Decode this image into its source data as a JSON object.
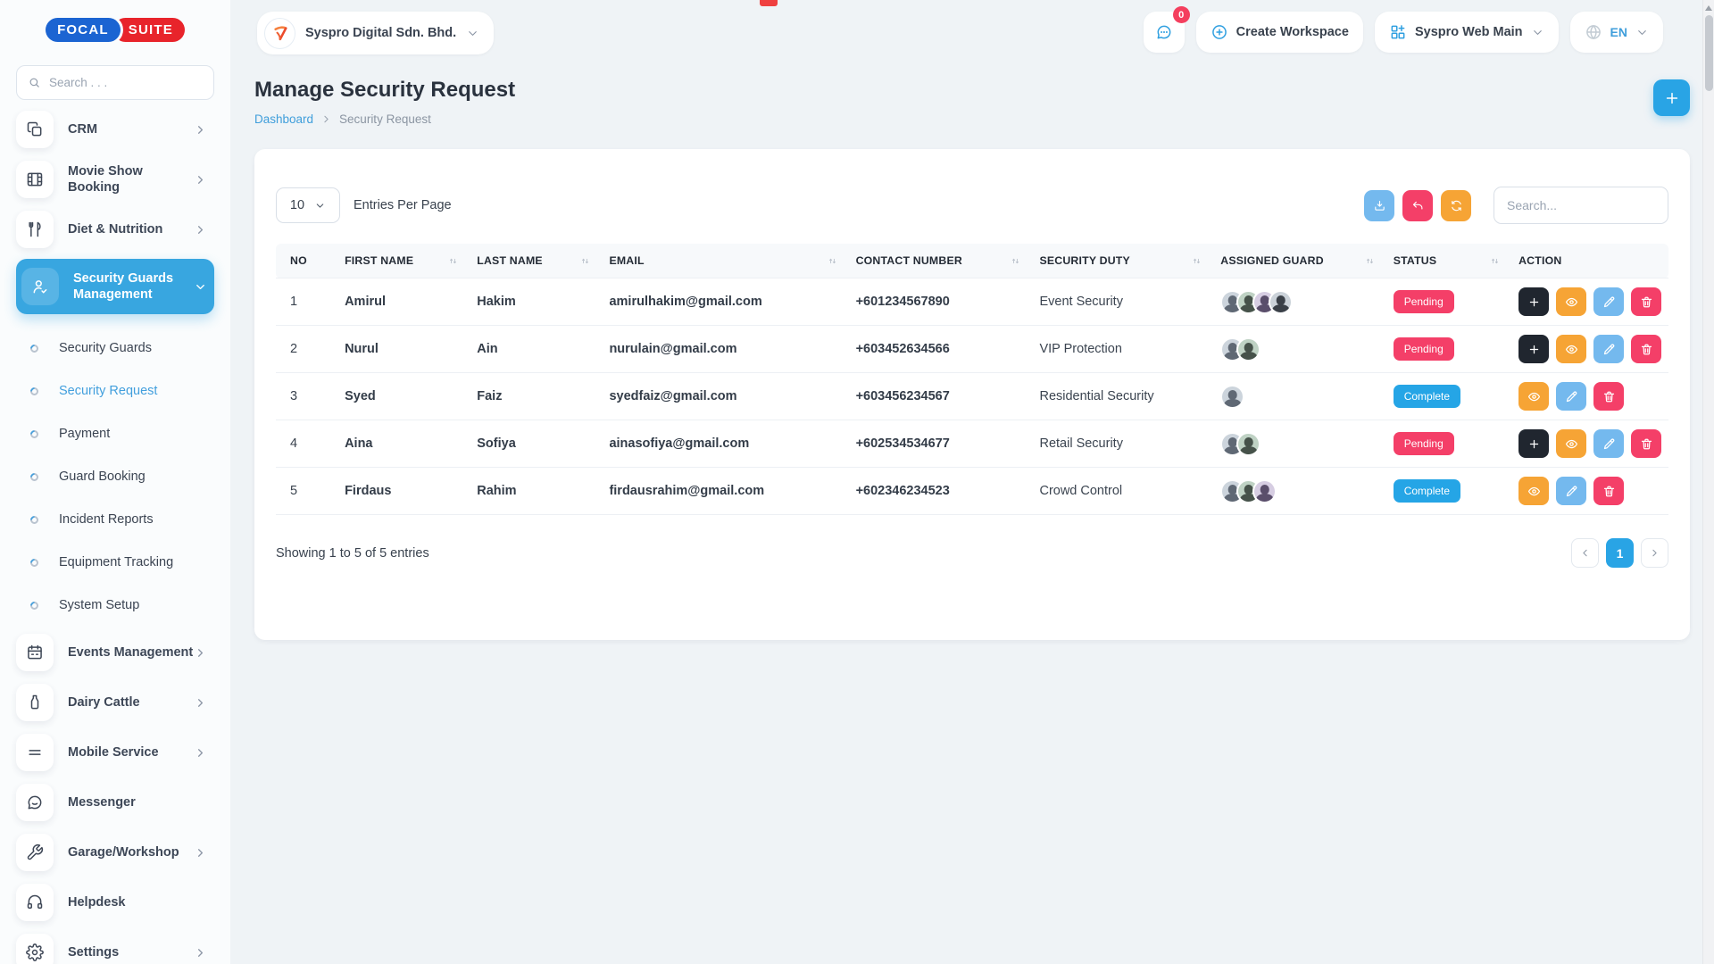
{
  "app": {
    "logo_primary": "FOCAL",
    "logo_secondary": "SUITE"
  },
  "sidebar": {
    "search_placeholder": "Search . . .",
    "items": [
      {
        "label": "CRM",
        "icon": "crm",
        "chevron": "right"
      },
      {
        "label": "Movie Show Booking",
        "icon": "film",
        "chevron": "right"
      },
      {
        "label": "Diet & Nutrition",
        "icon": "diet",
        "chevron": "right"
      },
      {
        "label": "Security Guards Management",
        "icon": "guard",
        "chevron": "down",
        "active": true,
        "children": [
          {
            "label": "Security Guards"
          },
          {
            "label": "Security Request",
            "active": true
          },
          {
            "label": "Payment"
          },
          {
            "label": "Guard Booking"
          },
          {
            "label": "Incident Reports"
          },
          {
            "label": "Equipment Tracking"
          },
          {
            "label": "System Setup"
          }
        ]
      },
      {
        "label": "Events Management",
        "icon": "calendar",
        "chevron": "right"
      },
      {
        "label": "Dairy Cattle",
        "icon": "milk",
        "chevron": "right"
      },
      {
        "label": "Mobile Service",
        "icon": "mobile",
        "chevron": "right"
      },
      {
        "label": "Messenger",
        "icon": "chat"
      },
      {
        "label": "Garage/Workshop",
        "icon": "wrench",
        "chevron": "right"
      },
      {
        "label": "Helpdesk",
        "icon": "headset"
      },
      {
        "label": "Settings",
        "icon": "gear",
        "chevron": "right"
      }
    ]
  },
  "topbar": {
    "company": "Syspro Digital Sdn. Bhd.",
    "chat_badge": "0",
    "create_workspace": "Create Workspace",
    "workspace": "Syspro Web Main",
    "language": "EN"
  },
  "page": {
    "title": "Manage Security Request",
    "breadcrumb": {
      "home": "Dashboard",
      "current": "Security Request"
    }
  },
  "toolbar": {
    "entries_value": "10",
    "entries_label": "Entries Per Page",
    "search_placeholder": "Search..."
  },
  "table": {
    "columns": [
      "NO",
      "FIRST NAME",
      "LAST NAME",
      "EMAIL",
      "CONTACT NUMBER",
      "SECURITY DUTY",
      "ASSIGNED GUARD",
      "STATUS",
      "ACTION"
    ],
    "sortable": [
      false,
      true,
      true,
      true,
      true,
      true,
      true,
      true,
      false
    ],
    "status_colors": {
      "Pending": "#f43f68",
      "Complete": "#25a5e6"
    },
    "rows": [
      {
        "no": "1",
        "first_name": "Amirul",
        "last_name": "Hakim",
        "email": "amirulhakim@gmail.com",
        "contact": "+601234567890",
        "duty": "Event Security",
        "guards": 4,
        "status": "Pending",
        "actions": [
          "add",
          "view",
          "edit",
          "delete"
        ]
      },
      {
        "no": "2",
        "first_name": "Nurul",
        "last_name": "Ain",
        "email": "nurulain@gmail.com",
        "contact": "+603452634566",
        "duty": "VIP Protection",
        "guards": 2,
        "status": "Pending",
        "actions": [
          "add",
          "view",
          "edit",
          "delete"
        ]
      },
      {
        "no": "3",
        "first_name": "Syed",
        "last_name": "Faiz",
        "email": "syedfaiz@gmail.com",
        "contact": "+603456234567",
        "duty": "Residential Security",
        "guards": 1,
        "status": "Complete",
        "actions": [
          "view",
          "edit",
          "delete"
        ]
      },
      {
        "no": "4",
        "first_name": "Aina",
        "last_name": "Sofiya",
        "email": "ainasofiya@gmail.com",
        "contact": "+602534534677",
        "duty": "Retail Security",
        "guards": 2,
        "status": "Pending",
        "actions": [
          "add",
          "view",
          "edit",
          "delete"
        ]
      },
      {
        "no": "5",
        "first_name": "Firdaus",
        "last_name": "Rahim",
        "email": "firdausrahim@gmail.com",
        "contact": "+602346234523",
        "duty": "Crowd Control",
        "guards": 3,
        "status": "Complete",
        "actions": [
          "view",
          "edit",
          "delete"
        ]
      }
    ]
  },
  "footer": {
    "summary": "Showing 1 to 5 of 5 entries",
    "page": "1"
  }
}
